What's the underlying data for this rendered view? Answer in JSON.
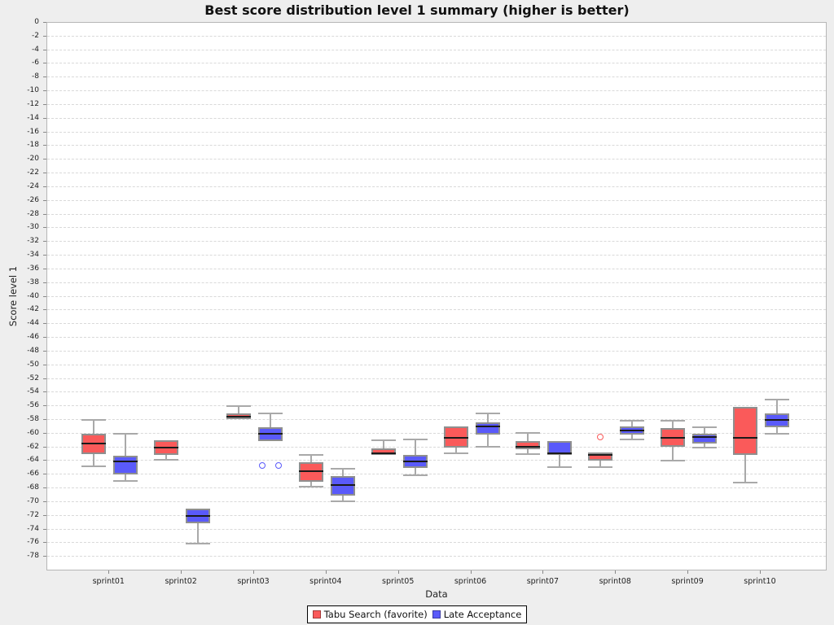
{
  "chart_data": {
    "type": "boxplot",
    "title": "Best score distribution level 1 summary (higher is better)",
    "xlabel": "Data",
    "ylabel": "Score level 1",
    "ylim": [
      -78,
      0
    ],
    "ytick_step": 2,
    "grid": "dashed-horizontal",
    "legend_position": "bottom-center",
    "categories": [
      "sprint01",
      "sprint02",
      "sprint03",
      "sprint04",
      "sprint05",
      "sprint06",
      "sprint07",
      "sprint08",
      "sprint09",
      "sprint10"
    ],
    "series": [
      {
        "name": "Tabu Search (favorite)",
        "color": "#fa5a5a",
        "boxes": [
          {
            "low": -64.8,
            "q1": -63.0,
            "median": -61.5,
            "q3": -60.0,
            "high": -58.0,
            "outliers": []
          },
          {
            "low": -63.8,
            "q1": -63.1,
            "median": -62.0,
            "q3": -61.0,
            "high": -61.0,
            "outliers": []
          },
          {
            "low": -57.9,
            "q1": -57.9,
            "median": -57.5,
            "q3": -57.1,
            "high": -56.0,
            "outliers": []
          },
          {
            "low": -67.8,
            "q1": -67.0,
            "median": -65.5,
            "q3": -64.2,
            "high": -63.1,
            "outliers": []
          },
          {
            "low": -63.1,
            "q1": -63.1,
            "median": -62.9,
            "q3": -62.1,
            "high": -61.0,
            "outliers": []
          },
          {
            "low": -62.9,
            "q1": -62.0,
            "median": -60.6,
            "q3": -59.0,
            "high": -59.0,
            "outliers": []
          },
          {
            "low": -63.0,
            "q1": -62.3,
            "median": -61.9,
            "q3": -61.1,
            "high": -59.9,
            "outliers": []
          },
          {
            "low": -64.9,
            "q1": -64.0,
            "median": -63.1,
            "q3": -62.8,
            "high": -62.8,
            "outliers": [
              -60.5
            ]
          },
          {
            "low": -63.9,
            "q1": -61.9,
            "median": -60.6,
            "q3": -59.2,
            "high": -58.1,
            "outliers": []
          },
          {
            "low": -67.1,
            "q1": -63.1,
            "median": -60.6,
            "q3": -56.1,
            "high": -56.1,
            "outliers": []
          }
        ]
      },
      {
        "name": "Late Acceptance",
        "color": "#5a5afa",
        "boxes": [
          {
            "low": -66.9,
            "q1": -66.0,
            "median": -64.1,
            "q3": -63.2,
            "high": -60.0,
            "outliers": []
          },
          {
            "low": -76.1,
            "q1": -73.1,
            "median": -72.0,
            "q3": -71.0,
            "high": -71.0,
            "outliers": []
          },
          {
            "low": -61.1,
            "q1": -61.1,
            "median": -60.0,
            "q3": -59.1,
            "high": -57.1,
            "outliers": [
              -64.6,
              -64.6
            ]
          },
          {
            "low": -69.9,
            "q1": -69.0,
            "median": -67.5,
            "q3": -66.2,
            "high": -65.1,
            "outliers": []
          },
          {
            "low": -66.1,
            "q1": -65.0,
            "median": -64.1,
            "q3": -63.1,
            "high": -60.9,
            "outliers": []
          },
          {
            "low": -61.9,
            "q1": -60.1,
            "median": -59.0,
            "q3": -58.3,
            "high": -57.1,
            "outliers": []
          },
          {
            "low": -64.9,
            "q1": -63.1,
            "median": -62.9,
            "q3": -61.1,
            "high": -61.1,
            "outliers": []
          },
          {
            "low": -60.9,
            "q1": -60.1,
            "median": -59.5,
            "q3": -58.9,
            "high": -58.1,
            "outliers": []
          },
          {
            "low": -62.0,
            "q1": -61.5,
            "median": -60.5,
            "q3": -60.0,
            "high": -59.1,
            "outliers": []
          },
          {
            "low": -60.0,
            "q1": -59.1,
            "median": -58.0,
            "q3": -57.1,
            "high": -55.0,
            "outliers": []
          }
        ]
      }
    ]
  }
}
